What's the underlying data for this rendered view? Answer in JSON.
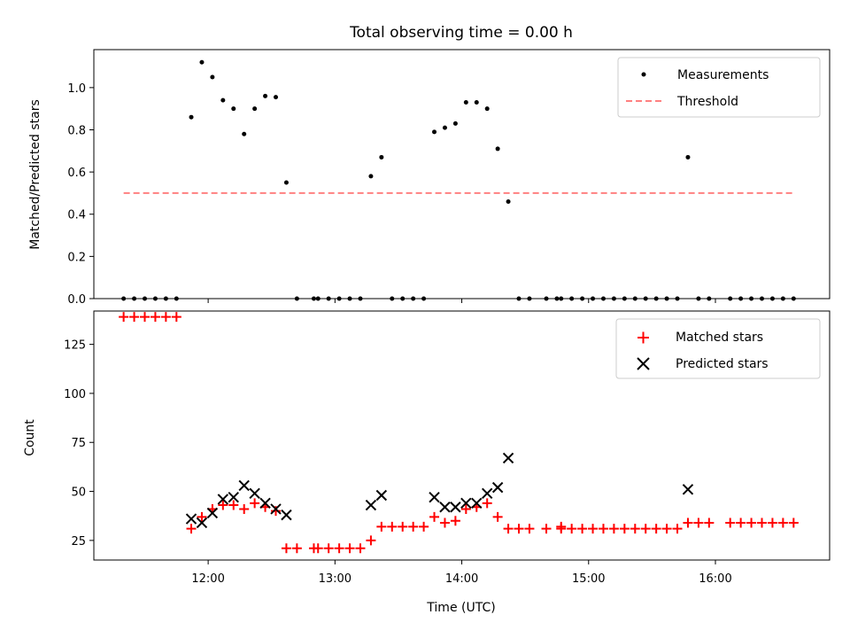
{
  "title": "Total observing time = 0.00 h",
  "x_tick_labels": [
    "12:00",
    "13:00",
    "14:00",
    "15:00",
    "16:00"
  ],
  "x_tick_values_h": [
    12,
    13,
    14,
    15,
    16
  ],
  "colors": {
    "measurement": "#000000",
    "threshold": "#ff8080",
    "matched": "#ff0000",
    "predicted": "#000000"
  },
  "chart_data": [
    {
      "type": "scatter",
      "ylabel": "Matched/Predicted stars",
      "xlabel": "",
      "ylim": [
        0,
        1.18
      ],
      "y_ticks": [
        "0.0",
        "0.2",
        "0.4",
        "0.6",
        "0.8",
        "1.0"
      ],
      "y_tick_values": [
        0,
        0.2,
        0.4,
        0.6,
        0.8,
        1.0
      ],
      "legend": {
        "placement": "top-right",
        "entries": [
          "Measurements",
          "Threshold"
        ]
      },
      "threshold": {
        "name": "Threshold",
        "value": 0.5,
        "x_range": [
          "11:20",
          "16:37"
        ]
      },
      "series": [
        {
          "name": "Measurements",
          "points": [
            [
              "11:20",
              0
            ],
            [
              "11:25",
              0
            ],
            [
              "11:30",
              0
            ],
            [
              "11:35",
              0
            ],
            [
              "11:40",
              0
            ],
            [
              "11:45",
              0
            ],
            [
              "11:52",
              0.86
            ],
            [
              "11:57",
              1.12
            ],
            [
              "12:02",
              1.05
            ],
            [
              "12:07",
              0.94
            ],
            [
              "12:12",
              0.9
            ],
            [
              "12:17",
              0.78
            ],
            [
              "12:22",
              0.9
            ],
            [
              "12:27",
              0.96
            ],
            [
              "12:32",
              0.955
            ],
            [
              "12:37",
              0.55
            ],
            [
              "12:42",
              0
            ],
            [
              "12:50",
              0
            ],
            [
              "12:52",
              0
            ],
            [
              "12:57",
              0
            ],
            [
              "13:02",
              0
            ],
            [
              "13:07",
              0
            ],
            [
              "13:12",
              0
            ],
            [
              "13:17",
              0.58
            ],
            [
              "13:22",
              0.67
            ],
            [
              "13:27",
              0
            ],
            [
              "13:32",
              0
            ],
            [
              "13:37",
              0
            ],
            [
              "13:42",
              0
            ],
            [
              "13:47",
              0.79
            ],
            [
              "13:52",
              0.81
            ],
            [
              "13:57",
              0.83
            ],
            [
              "14:02",
              0.93
            ],
            [
              "14:07",
              0.93
            ],
            [
              "14:12",
              0.9
            ],
            [
              "14:17",
              0.71
            ],
            [
              "14:22",
              0.46
            ],
            [
              "14:27",
              0
            ],
            [
              "14:32",
              0
            ],
            [
              "14:40",
              0
            ],
            [
              "14:45",
              0
            ],
            [
              "14:47",
              0
            ],
            [
              "14:52",
              0
            ],
            [
              "14:57",
              0
            ],
            [
              "15:02",
              0
            ],
            [
              "15:07",
              0
            ],
            [
              "15:12",
              0
            ],
            [
              "15:17",
              0
            ],
            [
              "15:22",
              0
            ],
            [
              "15:27",
              0
            ],
            [
              "15:32",
              0
            ],
            [
              "15:37",
              0
            ],
            [
              "15:42",
              0
            ],
            [
              "15:47",
              0.67
            ],
            [
              "15:52",
              0
            ],
            [
              "15:57",
              0
            ],
            [
              "16:07",
              0
            ],
            [
              "16:12",
              0
            ],
            [
              "16:17",
              0
            ],
            [
              "16:22",
              0
            ],
            [
              "16:27",
              0
            ],
            [
              "16:32",
              0
            ],
            [
              "16:37",
              0
            ]
          ]
        }
      ]
    },
    {
      "type": "scatter",
      "ylabel": "Count",
      "xlabel": "Time (UTC)",
      "ylim": [
        15,
        142
      ],
      "y_ticks": [
        "25",
        "50",
        "75",
        "100",
        "125"
      ],
      "y_tick_values": [
        25,
        50,
        75,
        100,
        125
      ],
      "legend": {
        "placement": "top-right",
        "entries": [
          "Matched stars",
          "Predicted stars"
        ]
      },
      "series": [
        {
          "name": "Matched stars",
          "marker": "+",
          "points": [
            [
              "11:20",
              139
            ],
            [
              "11:25",
              139
            ],
            [
              "11:30",
              139
            ],
            [
              "11:35",
              139
            ],
            [
              "11:40",
              139
            ],
            [
              "11:45",
              139
            ],
            [
              "11:52",
              31
            ],
            [
              "11:57",
              37
            ],
            [
              "12:02",
              41
            ],
            [
              "12:07",
              43
            ],
            [
              "12:12",
              43
            ],
            [
              "12:17",
              41
            ],
            [
              "12:22",
              44
            ],
            [
              "12:27",
              42
            ],
            [
              "12:32",
              40
            ],
            [
              "12:37",
              21
            ],
            [
              "12:42",
              21
            ],
            [
              "12:50",
              21
            ],
            [
              "12:52",
              21
            ],
            [
              "12:57",
              21
            ],
            [
              "13:02",
              21
            ],
            [
              "13:07",
              21
            ],
            [
              "13:12",
              21
            ],
            [
              "13:17",
              25
            ],
            [
              "13:22",
              32
            ],
            [
              "13:27",
              32
            ],
            [
              "13:32",
              32
            ],
            [
              "13:37",
              32
            ],
            [
              "13:42",
              32
            ],
            [
              "13:47",
              37
            ],
            [
              "13:52",
              34
            ],
            [
              "13:57",
              35
            ],
            [
              "14:02",
              41
            ],
            [
              "14:07",
              42
            ],
            [
              "14:12",
              44
            ],
            [
              "14:17",
              37
            ],
            [
              "14:22",
              31
            ],
            [
              "14:27",
              31
            ],
            [
              "14:32",
              31
            ],
            [
              "14:40",
              31
            ],
            [
              "14:47",
              31
            ],
            [
              "14:47",
              32
            ],
            [
              "14:52",
              31
            ],
            [
              "14:57",
              31
            ],
            [
              "15:02",
              31
            ],
            [
              "15:07",
              31
            ],
            [
              "15:12",
              31
            ],
            [
              "15:17",
              31
            ],
            [
              "15:22",
              31
            ],
            [
              "15:27",
              31
            ],
            [
              "15:32",
              31
            ],
            [
              "15:37",
              31
            ],
            [
              "15:42",
              31
            ],
            [
              "15:47",
              34
            ],
            [
              "15:52",
              34
            ],
            [
              "15:57",
              34
            ],
            [
              "16:07",
              34
            ],
            [
              "16:12",
              34
            ],
            [
              "16:17",
              34
            ],
            [
              "16:22",
              34
            ],
            [
              "16:27",
              34
            ],
            [
              "16:32",
              34
            ],
            [
              "16:37",
              34
            ]
          ]
        },
        {
          "name": "Predicted stars",
          "marker": "x",
          "points": [
            [
              "11:52",
              36
            ],
            [
              "11:57",
              34
            ],
            [
              "12:02",
              39
            ],
            [
              "12:07",
              46
            ],
            [
              "12:12",
              47
            ],
            [
              "12:17",
              53
            ],
            [
              "12:22",
              49
            ],
            [
              "12:27",
              44
            ],
            [
              "12:32",
              41
            ],
            [
              "12:37",
              38
            ],
            [
              "13:17",
              43
            ],
            [
              "13:22",
              48
            ],
            [
              "13:47",
              47
            ],
            [
              "13:52",
              42
            ],
            [
              "13:57",
              42
            ],
            [
              "14:02",
              44
            ],
            [
              "14:07",
              44
            ],
            [
              "14:12",
              49
            ],
            [
              "14:17",
              52
            ],
            [
              "14:22",
              67
            ],
            [
              "15:47",
              51
            ]
          ]
        }
      ]
    }
  ]
}
